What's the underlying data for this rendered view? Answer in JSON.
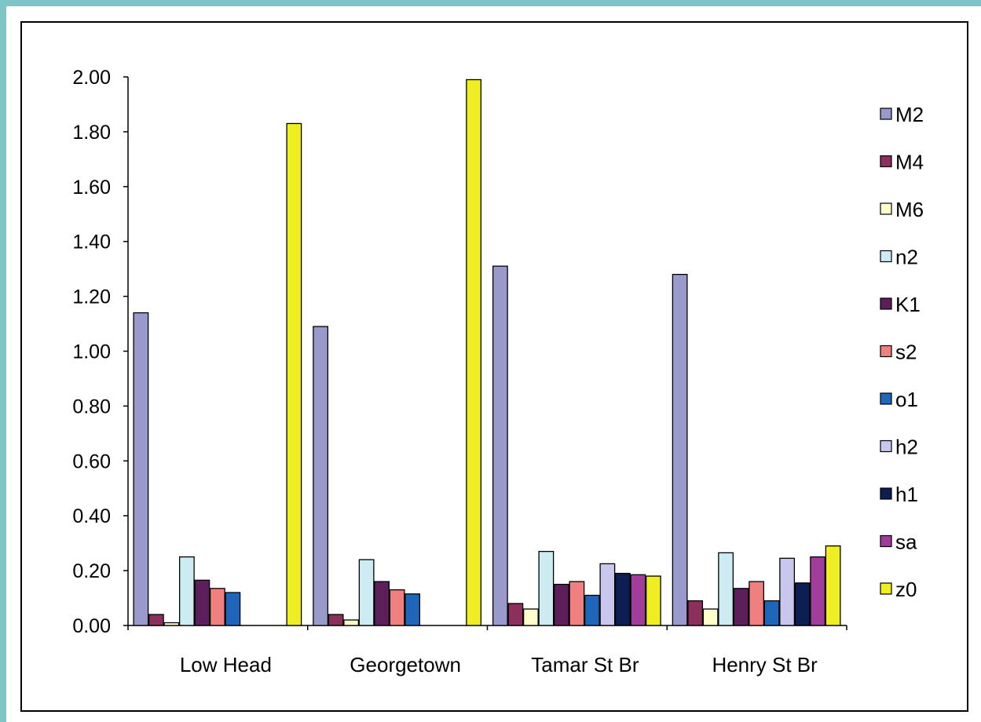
{
  "chart_data": {
    "type": "bar",
    "title": "",
    "xlabel": "",
    "ylabel": "",
    "ylim": [
      0,
      2.0
    ],
    "ytick_step": 0.2,
    "ytick_labels": [
      "0.00",
      "0.20",
      "0.40",
      "0.60",
      "0.80",
      "1.00",
      "1.20",
      "1.40",
      "1.60",
      "1.80",
      "2.00"
    ],
    "grid": false,
    "legend_position": "right",
    "categories": [
      "Low Head",
      "Georgetown",
      "Tamar St Br",
      "Henry St Br"
    ],
    "series": [
      {
        "name": "M2",
        "color": "#9999cc",
        "values": [
          1.14,
          1.09,
          1.31,
          1.28
        ]
      },
      {
        "name": "M4",
        "color": "#8b2f5c",
        "values": [
          0.04,
          0.04,
          0.08,
          0.09
        ]
      },
      {
        "name": "M6",
        "color": "#ffffcc",
        "values": [
          0.01,
          0.02,
          0.06,
          0.06
        ]
      },
      {
        "name": "n2",
        "color": "#ccecf2",
        "values": [
          0.25,
          0.24,
          0.27,
          0.265
        ]
      },
      {
        "name": "K1",
        "color": "#5c1f5c",
        "values": [
          0.165,
          0.16,
          0.15,
          0.135
        ]
      },
      {
        "name": "s2",
        "color": "#f08080",
        "values": [
          0.135,
          0.13,
          0.16,
          0.16
        ]
      },
      {
        "name": "o1",
        "color": "#1f66bb",
        "values": [
          0.12,
          0.115,
          0.11,
          0.09
        ]
      },
      {
        "name": "h2",
        "color": "#c8c8ee",
        "values": [
          0,
          0,
          0.225,
          0.245
        ]
      },
      {
        "name": "h1",
        "color": "#0b1f55",
        "values": [
          0,
          0,
          0.19,
          0.155
        ]
      },
      {
        "name": "sa",
        "color": "#a33d9c",
        "values": [
          0,
          0,
          0.185,
          0.25
        ]
      },
      {
        "name": "z0",
        "color": "#eeee22",
        "values": [
          1.83,
          1.99,
          0.18,
          0.29
        ]
      }
    ]
  }
}
